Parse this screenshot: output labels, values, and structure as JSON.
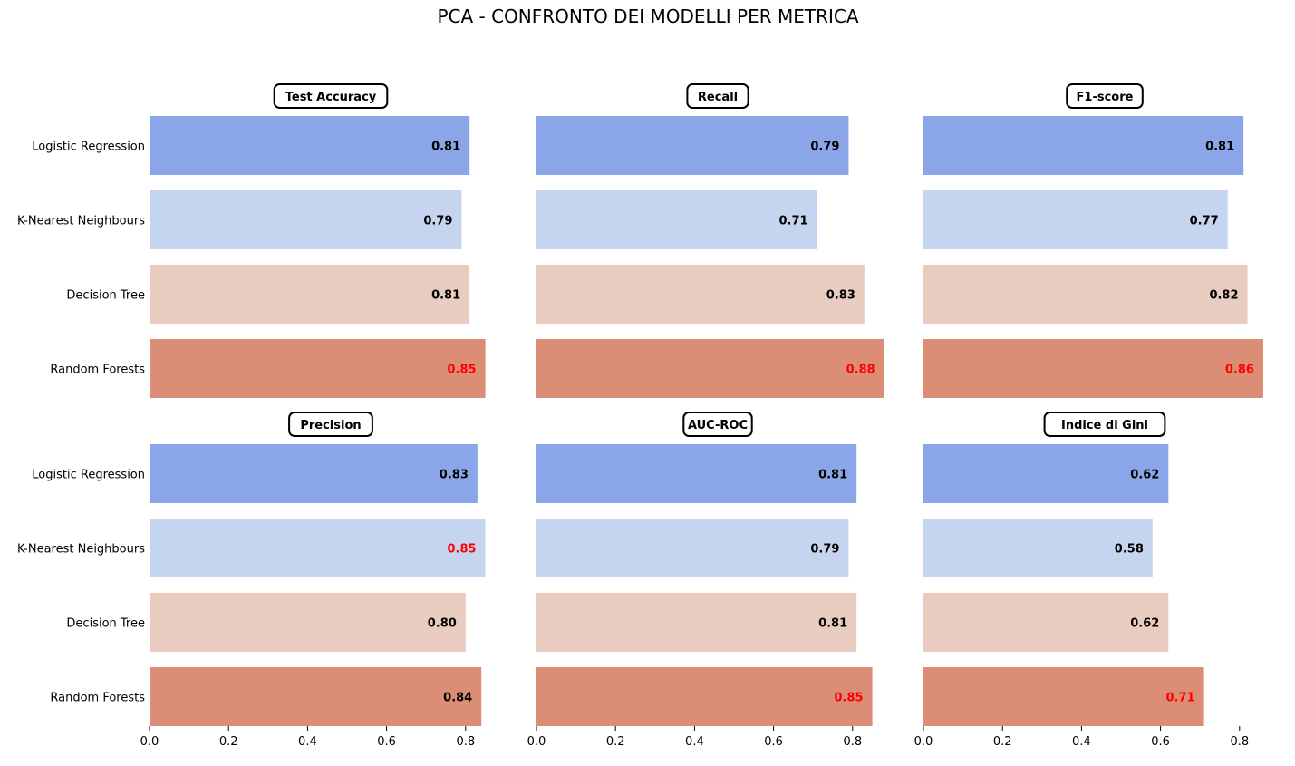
{
  "chart_data": {
    "type": "bar",
    "orientation": "horizontal",
    "title": "PCA - CONFRONTO DEI MODELLI PER METRICA",
    "categories": [
      "Logistic Regression",
      "K-Nearest Neighbours",
      "Decision Tree",
      "Random Forests"
    ],
    "category_colors": [
      "#8aa5e8",
      "#c6d5ef",
      "#e8ccc0",
      "#dc8d76"
    ],
    "best_value_color": "#ff0000",
    "default_value_color": "#000000",
    "xlim": [
      0,
      0.87
    ],
    "xticks": [
      "0.0",
      "0.2",
      "0.4",
      "0.6",
      "0.8"
    ],
    "panels": [
      {
        "metric": "Test Accuracy",
        "values": [
          0.81,
          0.79,
          0.81,
          0.85
        ],
        "labels": [
          "0.81",
          "0.79",
          "0.81",
          "0.85"
        ],
        "best_index": 3
      },
      {
        "metric": "Recall",
        "values": [
          0.79,
          0.71,
          0.83,
          0.88
        ],
        "labels": [
          "0.79",
          "0.71",
          "0.83",
          "0.88"
        ],
        "best_index": 3
      },
      {
        "metric": "F1-score",
        "values": [
          0.81,
          0.77,
          0.82,
          0.86
        ],
        "labels": [
          "0.81",
          "0.77",
          "0.82",
          "0.86"
        ],
        "best_index": 3
      },
      {
        "metric": "Precision",
        "values": [
          0.83,
          0.85,
          0.8,
          0.84
        ],
        "labels": [
          "0.83",
          "0.85",
          "0.80",
          "0.84"
        ],
        "best_index": 1
      },
      {
        "metric": "AUC-ROC",
        "values": [
          0.81,
          0.79,
          0.81,
          0.85
        ],
        "labels": [
          "0.81",
          "0.79",
          "0.81",
          "0.85"
        ],
        "best_index": 3
      },
      {
        "metric": "Indice di Gini",
        "values": [
          0.62,
          0.58,
          0.62,
          0.71
        ],
        "labels": [
          "0.62",
          "0.58",
          "0.62",
          "0.71"
        ],
        "best_index": 3
      }
    ],
    "grid": false,
    "legend": "none"
  }
}
